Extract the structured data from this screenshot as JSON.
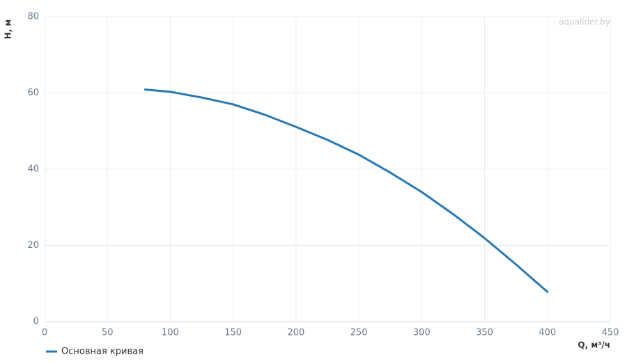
{
  "chart_data": {
    "type": "line",
    "watermark": "aqualider.by",
    "x_label": "Q, м³/ч",
    "y_label": "H, м",
    "x": [
      80,
      100,
      125,
      150,
      175,
      200,
      225,
      250,
      275,
      300,
      325,
      350,
      375,
      400
    ],
    "series": [
      {
        "name": "Основная кривая",
        "color": "#2878b5",
        "values": [
          60.9,
          60.3,
          58.8,
          57.0,
          54.3,
          51.1,
          47.7,
          43.8,
          39.1,
          34.0,
          28.2,
          21.9,
          15.0,
          7.8
        ]
      }
    ],
    "xlim": [
      0,
      450
    ],
    "xticks": [
      0,
      50,
      100,
      150,
      200,
      250,
      300,
      350,
      400,
      450
    ],
    "ylim": [
      0,
      80
    ],
    "yticks": [
      0,
      20,
      40,
      60,
      80
    ],
    "grid": true
  }
}
